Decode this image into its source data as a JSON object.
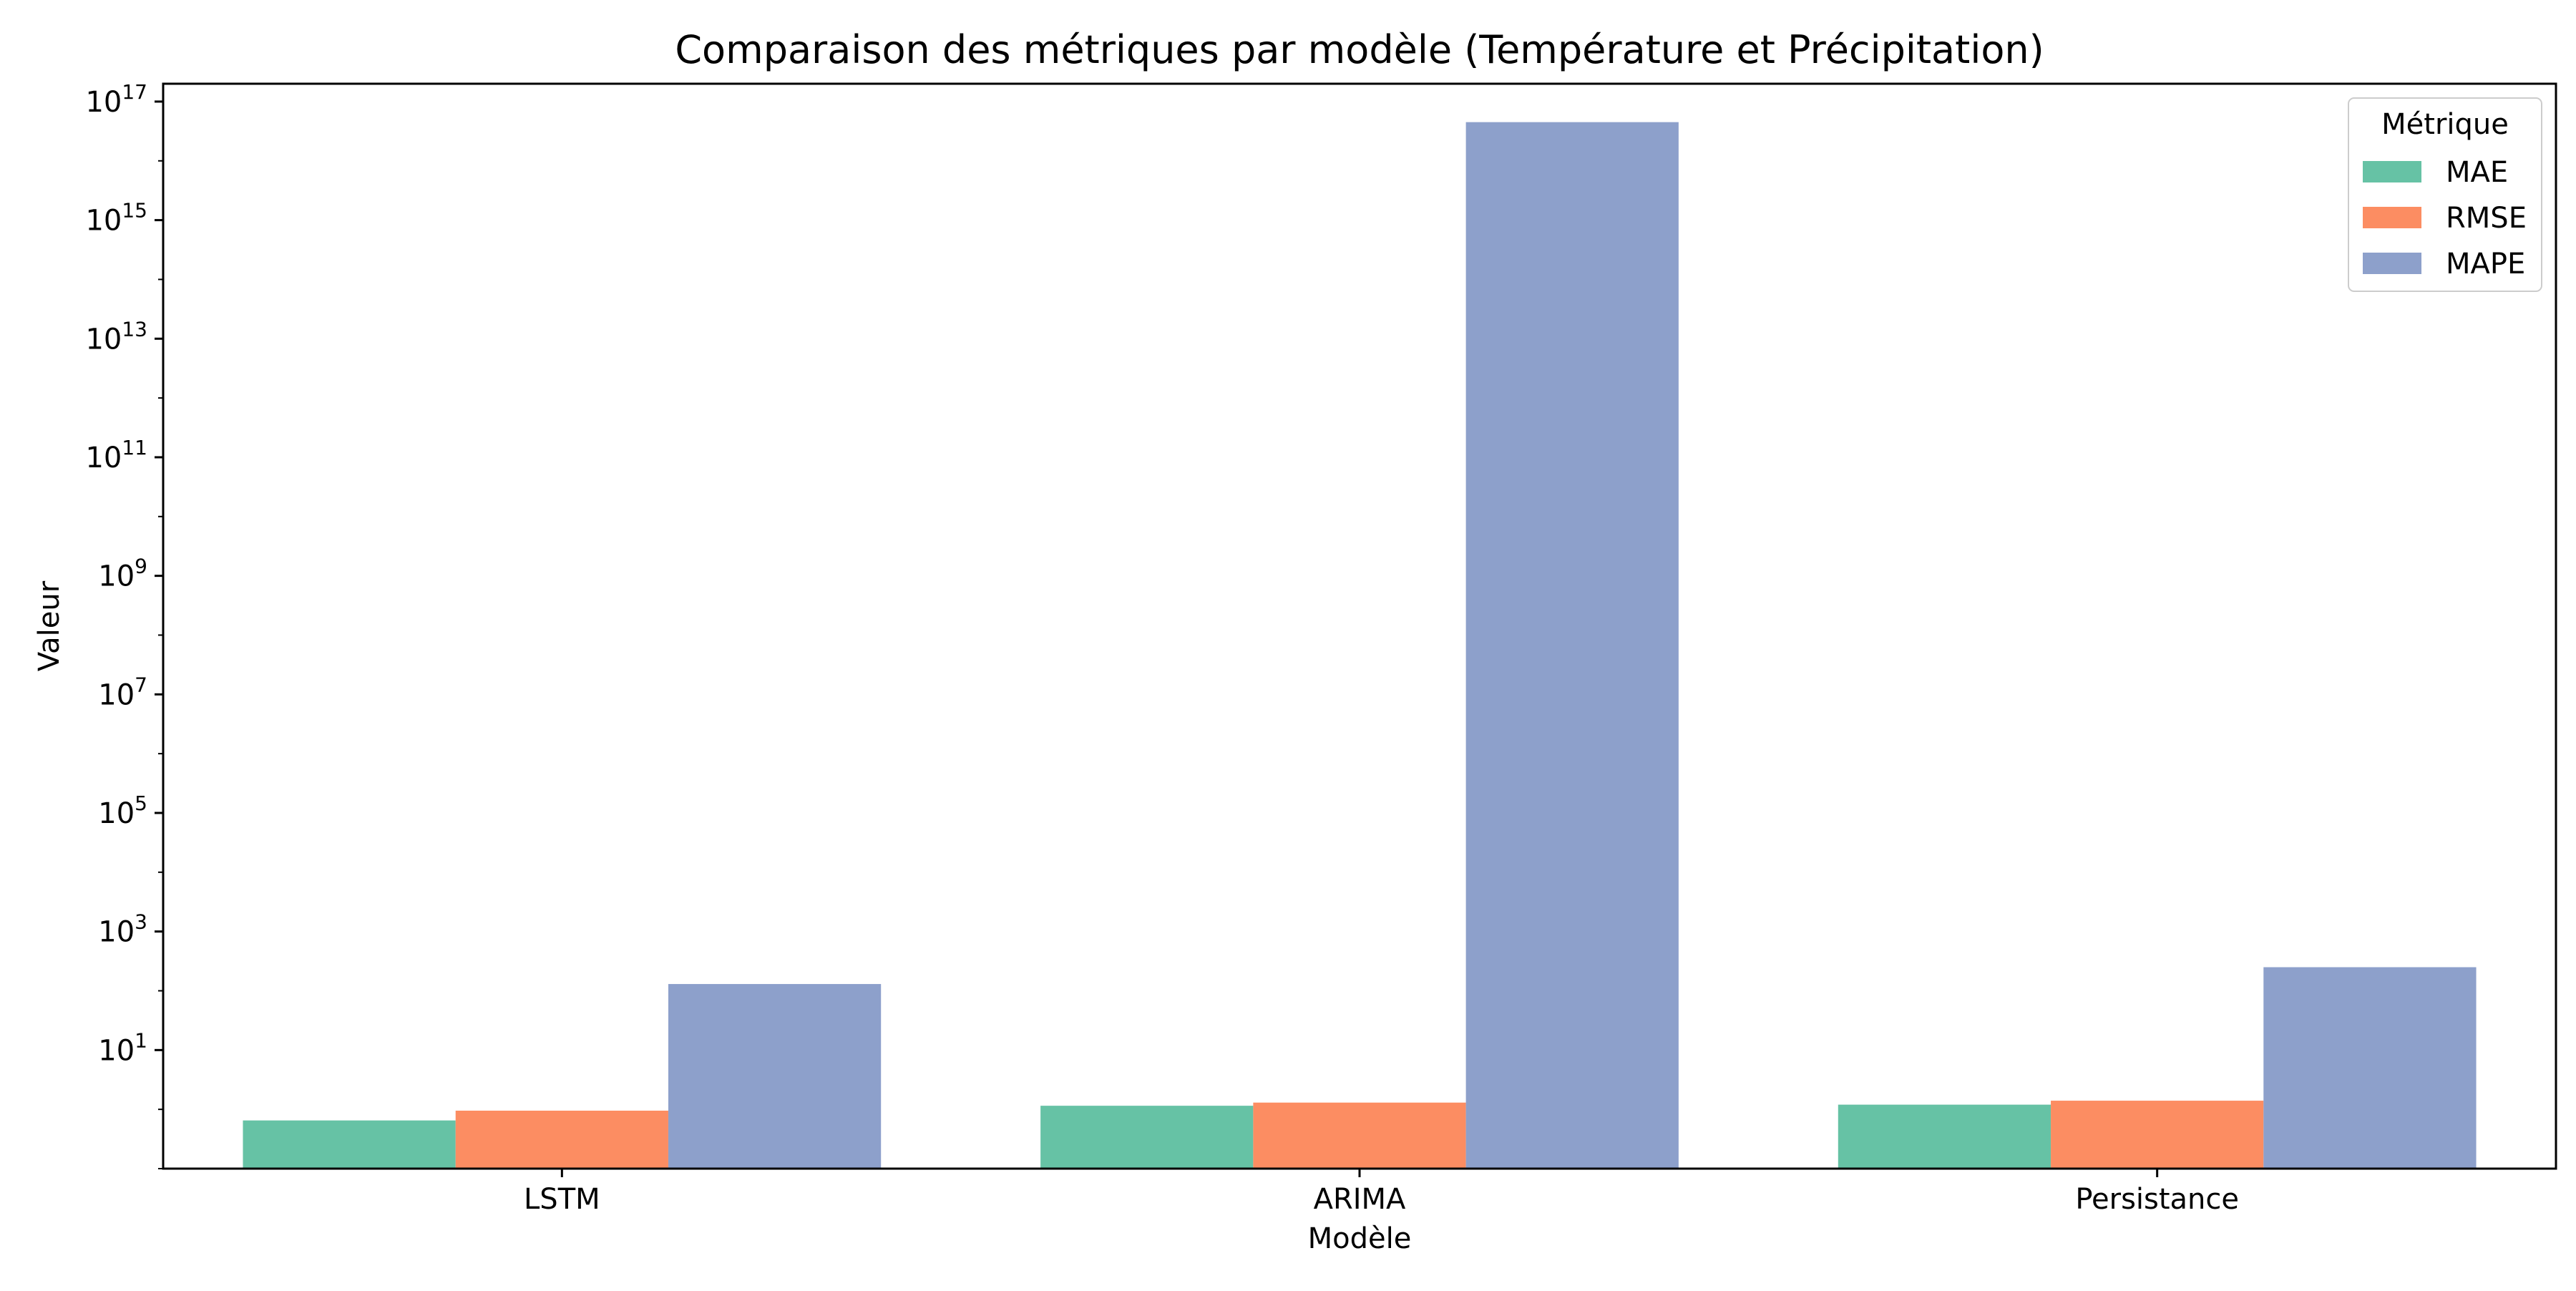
{
  "chart_data": {
    "type": "bar",
    "title": "Comparaison des métriques par modèle (Température et Précipitation)",
    "xlabel": "Modèle",
    "ylabel": "Valeur",
    "yscale": "log",
    "ylim": [
      0.1,
      2e+17
    ],
    "yticks": [
      {
        "exp": "1",
        "value": 10
      },
      {
        "exp": "3",
        "value": 1000
      },
      {
        "exp": "5",
        "value": 100000
      },
      {
        "exp": "7",
        "value": 10000000
      },
      {
        "exp": "9",
        "value": 1000000000
      },
      {
        "exp": "11",
        "value": 100000000000
      },
      {
        "exp": "13",
        "value": 10000000000000
      },
      {
        "exp": "15",
        "value": 1000000000000000
      },
      {
        "exp": "17",
        "value": 100000000000000000
      }
    ],
    "ytick_base": "10",
    "categories": [
      "LSTM",
      "ARIMA",
      "Persistance"
    ],
    "series": [
      {
        "name": "MAE",
        "color": "#66c2a5",
        "values": [
          0.65,
          1.15,
          1.2
        ]
      },
      {
        "name": "RMSE",
        "color": "#fc8d62",
        "values": [
          0.95,
          1.3,
          1.4
        ]
      },
      {
        "name": "MAPE",
        "color": "#8da0cb",
        "values": [
          130,
          4.5e+16,
          250
        ]
      }
    ],
    "legend": {
      "title": "Métrique",
      "placement": "top-right"
    },
    "grid": false
  }
}
